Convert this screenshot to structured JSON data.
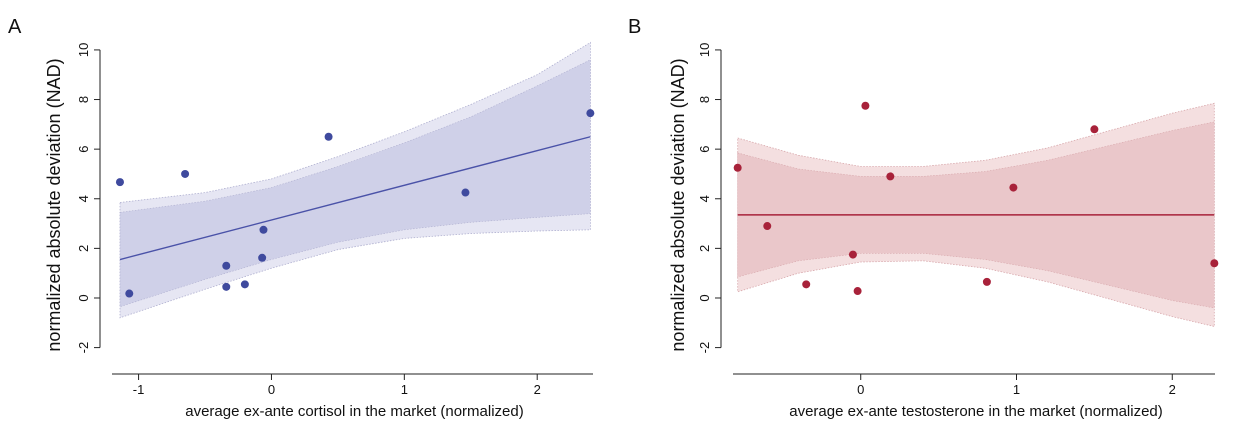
{
  "chart_data": [
    {
      "panel_label": "A",
      "type": "scatter",
      "xlabel": "average ex-ante cortisol in the market (normalized)",
      "ylabel": "normalized absolute deviation (NAD)",
      "xlim": [
        -1.2,
        2.45
      ],
      "ylim": [
        -2.5,
        10.4
      ],
      "xticks": [
        -1,
        0,
        1,
        2
      ],
      "xtick_labels": [
        "-1",
        "0",
        "1",
        "2"
      ],
      "yticks": [
        -2,
        0,
        2,
        4,
        6,
        8,
        10
      ],
      "ytick_labels": [
        "-2",
        "0",
        "2",
        "4",
        "6",
        "8",
        "10"
      ],
      "grid": false,
      "colors": {
        "points": "#3f4a9e",
        "line": "#4a52a8",
        "band_outer": "#e6e6f3",
        "band_inner": "#cfd0e8",
        "band_border": "#b0b0d0"
      },
      "points": [
        {
          "x": -1.14,
          "y": 4.67
        },
        {
          "x": -1.07,
          "y": 0.18
        },
        {
          "x": -0.65,
          "y": 5.0
        },
        {
          "x": -0.34,
          "y": 1.3
        },
        {
          "x": -0.34,
          "y": 0.45
        },
        {
          "x": -0.2,
          "y": 0.55
        },
        {
          "x": -0.07,
          "y": 1.62
        },
        {
          "x": -0.06,
          "y": 2.75
        },
        {
          "x": 0.43,
          "y": 6.5
        },
        {
          "x": 1.46,
          "y": 4.25
        },
        {
          "x": 2.4,
          "y": 7.45
        }
      ],
      "fit": {
        "x": [
          -1.14,
          2.4
        ],
        "y": [
          1.55,
          6.5
        ]
      },
      "band_outer": {
        "x": [
          -1.14,
          -0.5,
          0.0,
          0.5,
          1.0,
          1.5,
          2.0,
          2.4
        ],
        "lo": [
          -0.8,
          0.35,
          1.2,
          1.95,
          2.4,
          2.6,
          2.7,
          2.75
        ],
        "hi": [
          3.85,
          4.25,
          4.8,
          5.7,
          6.7,
          7.8,
          9.0,
          10.3
        ]
      },
      "band_inner": {
        "x": [
          -1.14,
          -0.5,
          0.0,
          0.5,
          1.0,
          1.5,
          2.0,
          2.4
        ],
        "lo": [
          -0.35,
          0.75,
          1.55,
          2.25,
          2.75,
          3.05,
          3.25,
          3.4
        ],
        "hi": [
          3.45,
          3.9,
          4.45,
          5.3,
          6.25,
          7.3,
          8.55,
          9.6
        ]
      }
    },
    {
      "panel_label": "B",
      "type": "scatter",
      "xlabel": "average ex-ante testosterone in the market (normalized)",
      "ylabel": "normalized absolute deviation (NAD)",
      "xlim": [
        -0.82,
        2.3
      ],
      "ylim": [
        -2.5,
        10.4
      ],
      "xticks": [
        0,
        1,
        2
      ],
      "xtick_labels": [
        "0",
        "1",
        "2"
      ],
      "yticks": [
        -2,
        0,
        2,
        4,
        6,
        8,
        10
      ],
      "ytick_labels": [
        "-2",
        "0",
        "2",
        "4",
        "6",
        "8",
        "10"
      ],
      "grid": false,
      "colors": {
        "points": "#a8223a",
        "line": "#a8223a",
        "band_outer": "#f4dfe0",
        "band_inner": "#eac7ca",
        "band_border": "#d8a8ac"
      },
      "points": [
        {
          "x": -0.79,
          "y": 5.25
        },
        {
          "x": -0.6,
          "y": 2.9
        },
        {
          "x": -0.35,
          "y": 0.55
        },
        {
          "x": -0.05,
          "y": 1.75
        },
        {
          "x": -0.02,
          "y": 0.28
        },
        {
          "x": 0.03,
          "y": 7.75
        },
        {
          "x": 0.19,
          "y": 4.9
        },
        {
          "x": 0.81,
          "y": 0.65
        },
        {
          "x": 0.98,
          "y": 4.45
        },
        {
          "x": 1.5,
          "y": 6.8
        },
        {
          "x": 2.27,
          "y": 1.4
        }
      ],
      "fit": {
        "x": [
          -0.79,
          2.27
        ],
        "y": [
          3.35,
          3.35
        ]
      },
      "band_outer": {
        "x": [
          -0.79,
          -0.4,
          0.0,
          0.4,
          0.8,
          1.2,
          1.6,
          2.0,
          2.27
        ],
        "lo": [
          0.25,
          1.0,
          1.45,
          1.5,
          1.2,
          0.65,
          -0.05,
          -0.75,
          -1.15
        ],
        "hi": [
          6.45,
          5.75,
          5.3,
          5.3,
          5.55,
          6.05,
          6.75,
          7.45,
          7.85
        ]
      },
      "band_inner": {
        "x": [
          -0.79,
          -0.4,
          0.0,
          0.4,
          0.8,
          1.2,
          1.6,
          2.0,
          2.27
        ],
        "lo": [
          0.85,
          1.5,
          1.8,
          1.8,
          1.55,
          1.1,
          0.5,
          -0.1,
          -0.4
        ],
        "hi": [
          5.85,
          5.2,
          4.9,
          4.9,
          5.1,
          5.55,
          6.15,
          6.75,
          7.1
        ]
      }
    }
  ]
}
